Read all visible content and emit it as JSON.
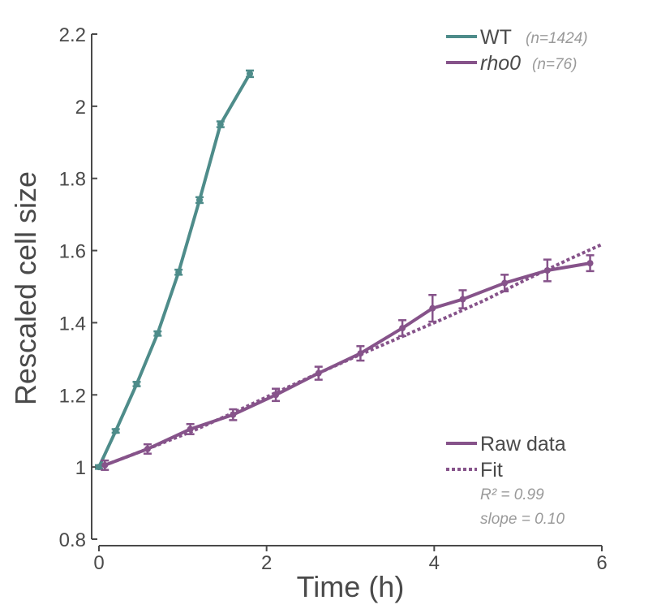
{
  "chart_data": {
    "type": "line",
    "xlabel": "Time (h)",
    "ylabel": "Rescaled cell size",
    "xlim": [
      0,
      6
    ],
    "ylim": [
      0.8,
      2.2
    ],
    "xticks": [
      "0",
      "2",
      "4",
      "6"
    ],
    "yticks": [
      "0.8",
      "1",
      "1.2",
      "1.4",
      "1.6",
      "1.8",
      "2",
      "2.2"
    ],
    "grid": false,
    "colors": {
      "wt": "#4e8c8a",
      "rho0": "#86538a",
      "stats": "#9a9a9a"
    },
    "series": [
      {
        "name": "WT",
        "n_label": "(n=1424)",
        "x": [
          0,
          0.2,
          0.45,
          0.7,
          0.95,
          1.2,
          1.45,
          1.8
        ],
        "y": [
          1.0,
          1.1,
          1.23,
          1.37,
          1.54,
          1.74,
          1.95,
          2.09
        ],
        "err": [
          0.005,
          0.005,
          0.006,
          0.006,
          0.007,
          0.008,
          0.008,
          0.009
        ]
      },
      {
        "name": "rho0",
        "n_label": "(n=76)",
        "x": [
          0.07,
          0.58,
          1.09,
          1.6,
          2.11,
          2.62,
          3.12,
          3.62,
          3.98,
          4.34,
          4.84,
          5.35,
          5.86
        ],
        "y": [
          1.005,
          1.05,
          1.105,
          1.145,
          1.2,
          1.26,
          1.315,
          1.385,
          1.44,
          1.465,
          1.51,
          1.545,
          1.565
        ],
        "err": [
          0.013,
          0.013,
          0.014,
          0.015,
          0.017,
          0.018,
          0.02,
          0.022,
          0.037,
          0.025,
          0.023,
          0.03,
          0.022
        ]
      }
    ],
    "fit": {
      "name": "Fit",
      "x": [
        0.07,
        0.6,
        1.1,
        1.6,
        2.1,
        2.6,
        3.1,
        3.6,
        4.1,
        4.6,
        5.1,
        5.6,
        6.0
      ],
      "y": [
        1.005,
        1.052,
        1.098,
        1.15,
        1.205,
        1.258,
        1.31,
        1.36,
        1.41,
        1.462,
        1.52,
        1.575,
        1.617
      ]
    },
    "legend_top": [
      {
        "label": "WT",
        "n": "(n=1424)"
      },
      {
        "label": "rho0",
        "n": "(n=76)"
      }
    ],
    "legend_bottom": {
      "raw": "Raw data",
      "fit": "Fit"
    },
    "stats": {
      "r2": "R² = 0.99",
      "slope": "slope = 0.10"
    }
  }
}
